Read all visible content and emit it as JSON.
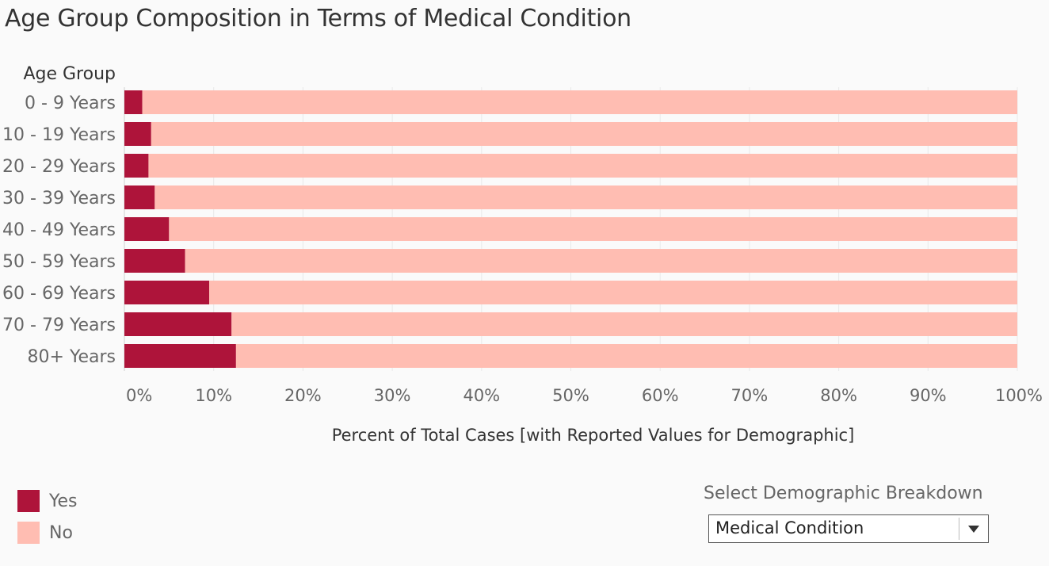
{
  "title": "Age Group Composition in Terms of Medical Condition",
  "chart_data": {
    "type": "bar",
    "orientation": "horizontal",
    "stacked": true,
    "row_header": "Age Group",
    "categories": [
      "0 - 9 Years",
      "10 - 19 Years",
      "20 - 29 Years",
      "30 - 39 Years",
      "40 - 49 Years",
      "50 - 59 Years",
      "60 - 69 Years",
      "70 - 79 Years",
      "80+ Years"
    ],
    "series": [
      {
        "name": "Yes",
        "color": "#ae143a",
        "values": [
          2.0,
          3.0,
          2.7,
          3.4,
          5.0,
          6.8,
          9.5,
          12.0,
          12.5
        ]
      },
      {
        "name": "No",
        "color": "#ffbdb2",
        "values": [
          98.0,
          97.0,
          97.3,
          96.6,
          95.0,
          93.2,
          90.5,
          88.0,
          87.5
        ]
      }
    ],
    "xlabel": "Percent of Total Cases [with Reported Values for Demographic]",
    "xticks": [
      "0%",
      "10%",
      "20%",
      "30%",
      "40%",
      "50%",
      "60%",
      "70%",
      "80%",
      "90%",
      "100%"
    ],
    "xlim": [
      0,
      100
    ],
    "grid": true,
    "legend_position": "bottom-left"
  },
  "legend": {
    "yes": "Yes",
    "no": "No",
    "yes_color": "#ae143a",
    "no_color": "#ffbdb2"
  },
  "filter": {
    "label": "Select Demographic Breakdown",
    "value": "Medical Condition"
  }
}
